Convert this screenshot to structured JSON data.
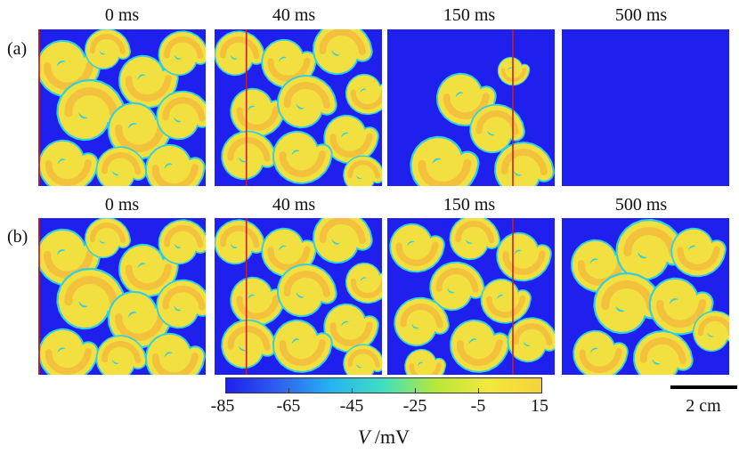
{
  "times": [
    "0 ms",
    "40 ms",
    "150 ms",
    "500 ms"
  ],
  "rows": [
    "(a)",
    "(b)"
  ],
  "colorbar": {
    "ticks": [
      "-85",
      "-65",
      "-45",
      "-25",
      "-5",
      "15"
    ],
    "var": "V",
    "unit": " /mV",
    "colors": [
      "#1f1fee",
      "#2f5ff0",
      "#24b4f0",
      "#3fe0c0",
      "#b8e83a",
      "#f2e83a",
      "#f7d23a"
    ]
  },
  "scale_bar": {
    "label": "2 cm"
  },
  "colors": {
    "rest": "#1f1fee",
    "excited": "#f2e040",
    "core": "#f4a838",
    "edge": "#2fd0e0",
    "marker": "#c81e1e"
  },
  "panels": [
    {
      "row": 0,
      "col": 0,
      "state": "turbulent-a",
      "marker": 0.0
    },
    {
      "row": 0,
      "col": 1,
      "state": "turbulent-a2",
      "marker": 0.19
    },
    {
      "row": 0,
      "col": 2,
      "state": "sparse",
      "marker": 0.75
    },
    {
      "row": 0,
      "col": 3,
      "state": "quiescent",
      "marker": null
    },
    {
      "row": 1,
      "col": 0,
      "state": "turbulent-a",
      "marker": 0.0
    },
    {
      "row": 1,
      "col": 1,
      "state": "turbulent-a2",
      "marker": 0.19
    },
    {
      "row": 1,
      "col": 2,
      "state": "turbulent-b",
      "marker": 0.75
    },
    {
      "row": 1,
      "col": 3,
      "state": "turbulent-c",
      "marker": null
    }
  ]
}
